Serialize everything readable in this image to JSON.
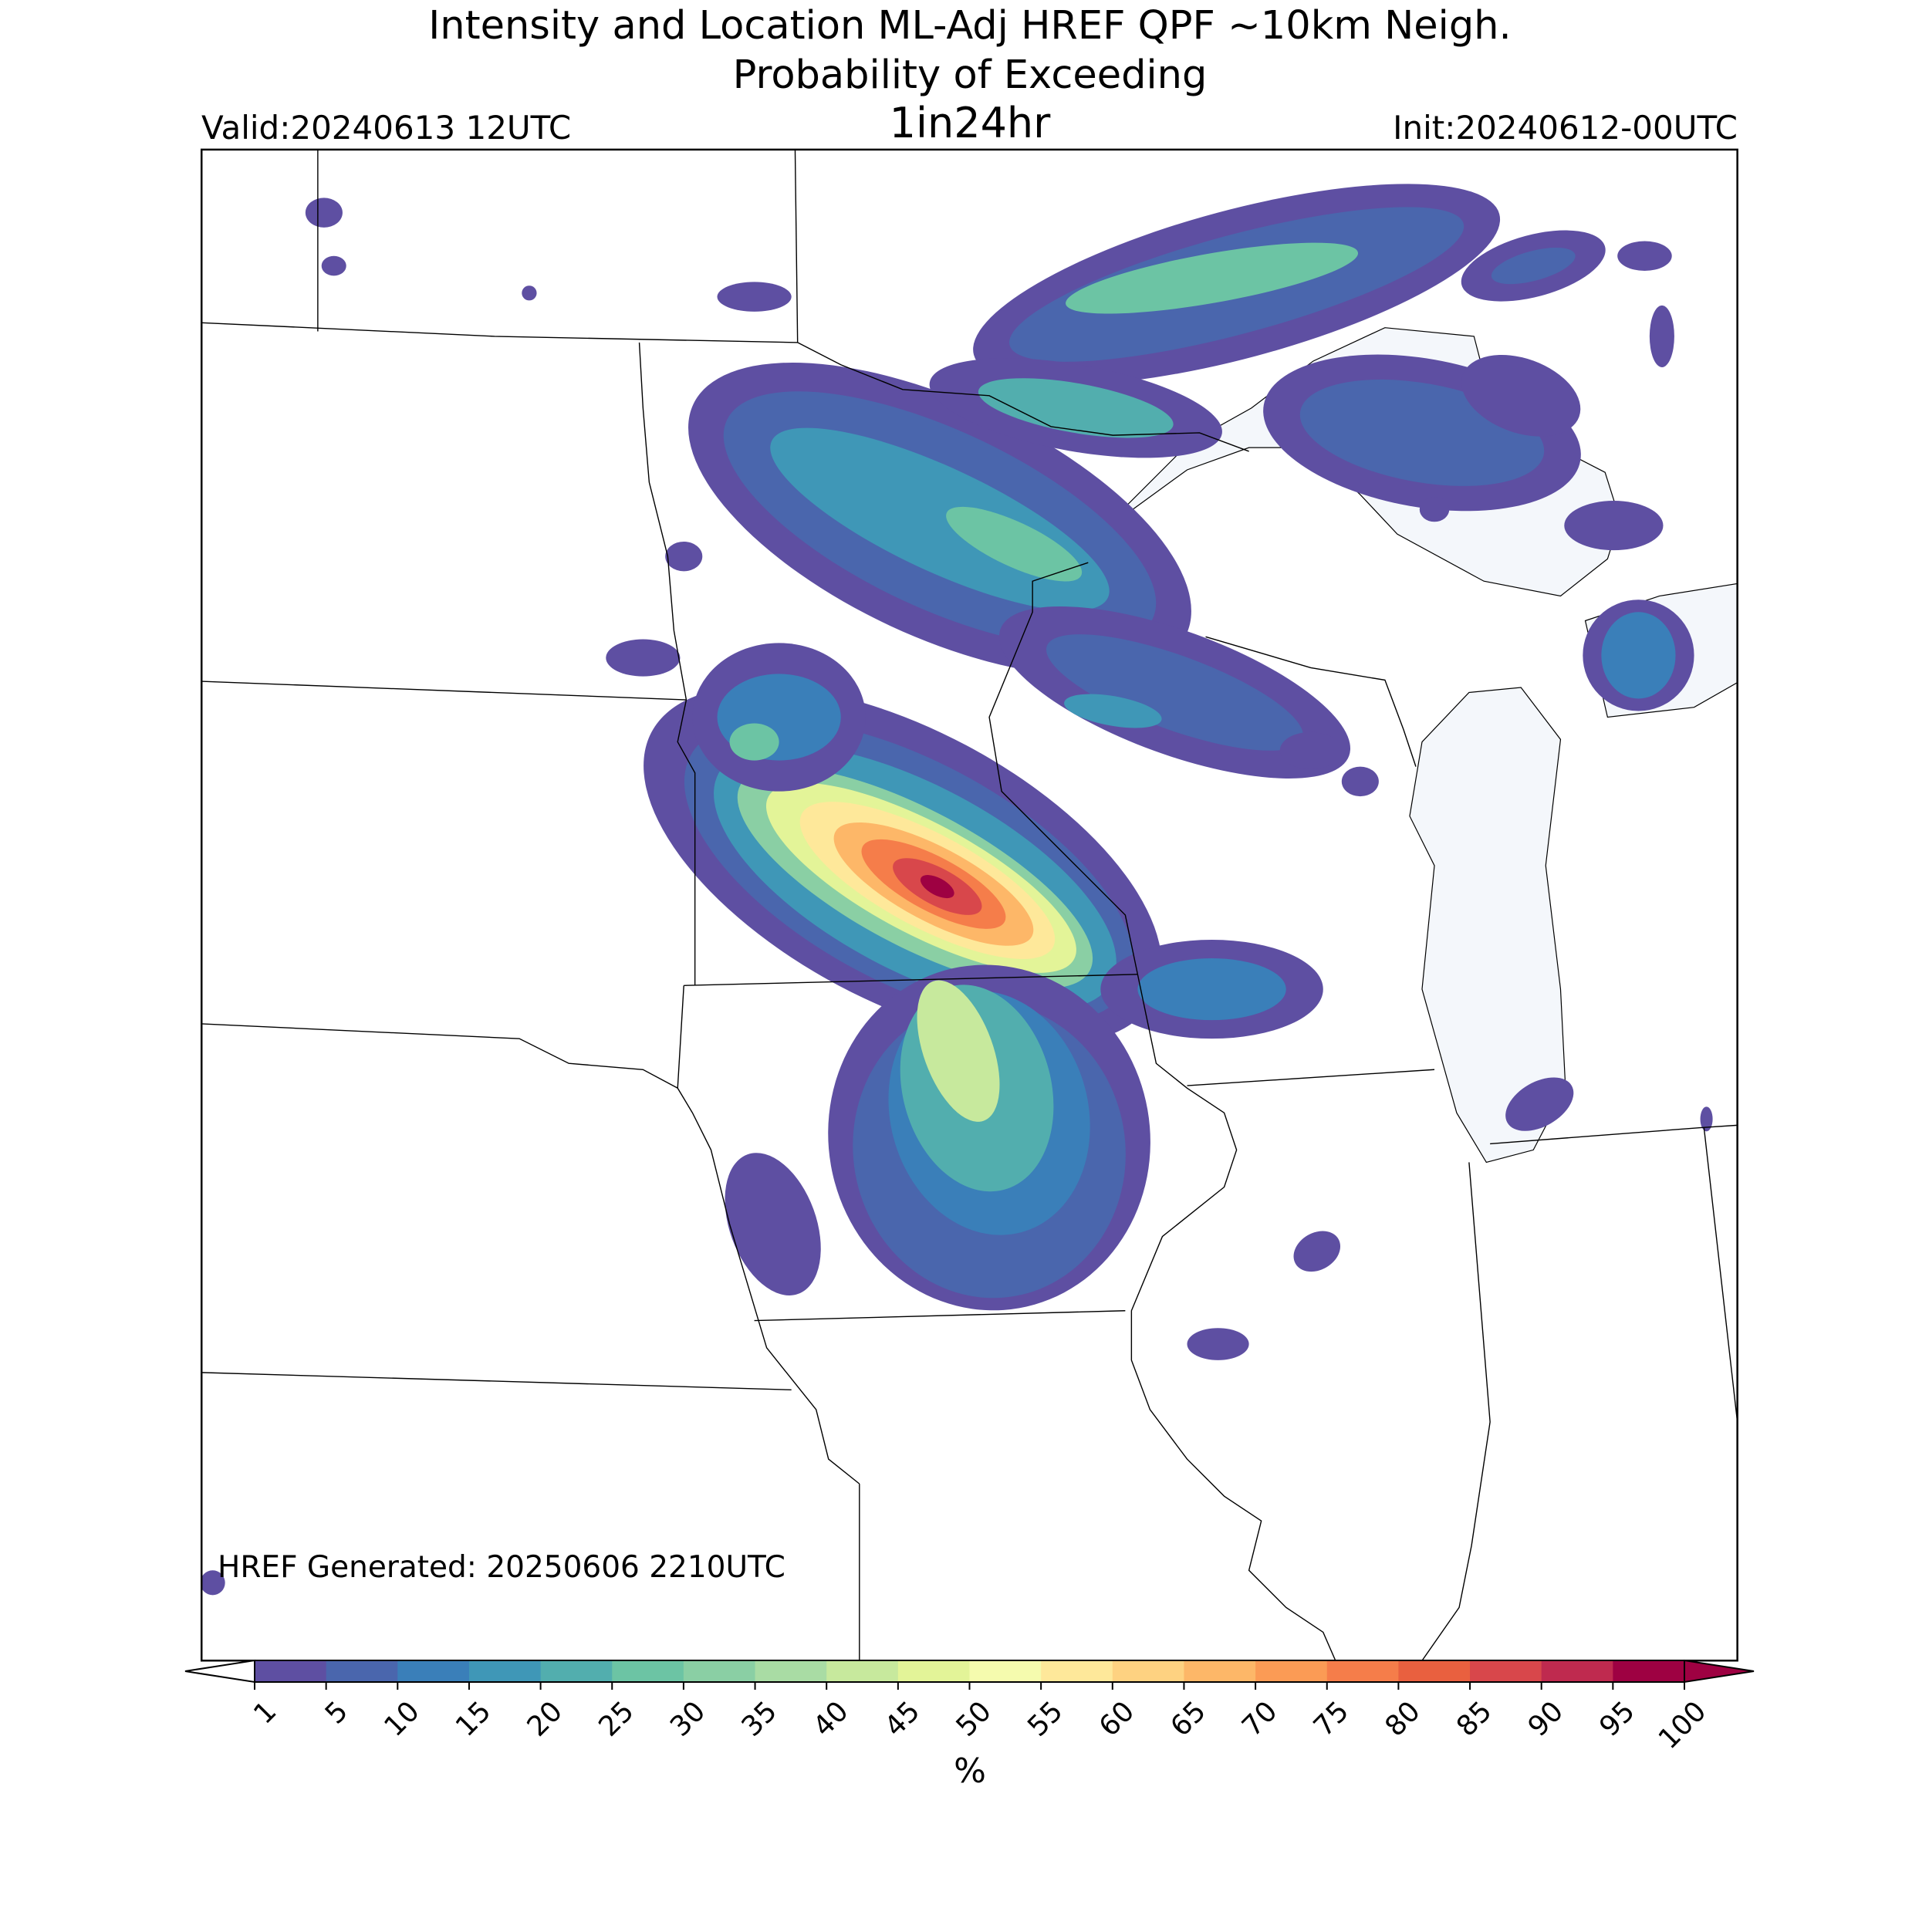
{
  "header": {
    "title_line1": "Intensity and Location ML-Adj HREF QPF ~10km Neigh.",
    "title_line2": "Probability of Exceeding",
    "valid": "Valid:20240613 12UTC",
    "period": "1in24hr",
    "init": "Init:20240612-00UTC"
  },
  "footer_note": "HREF Generated: 20250606 2210UTC",
  "colorbar": {
    "ticks": [
      1,
      5,
      10,
      15,
      20,
      25,
      30,
      35,
      40,
      45,
      50,
      55,
      60,
      65,
      70,
      75,
      80,
      85,
      90,
      95,
      100
    ],
    "colors": [
      "#5e4fa2",
      "#4a66ad",
      "#3a7fb9",
      "#3f97b7",
      "#52aeae",
      "#6cc4a4",
      "#8acfa4",
      "#a9dca4",
      "#c7e99d",
      "#e3f498",
      "#f5fbae",
      "#fee89a",
      "#fed281",
      "#fdb768",
      "#fb9b55",
      "#f57d4a",
      "#e9603f",
      "#d8474b",
      "#bf2a4f",
      "#9e0142"
    ],
    "under_color": "#ffffff",
    "over_color": "#9e0142",
    "label": "%"
  }
}
